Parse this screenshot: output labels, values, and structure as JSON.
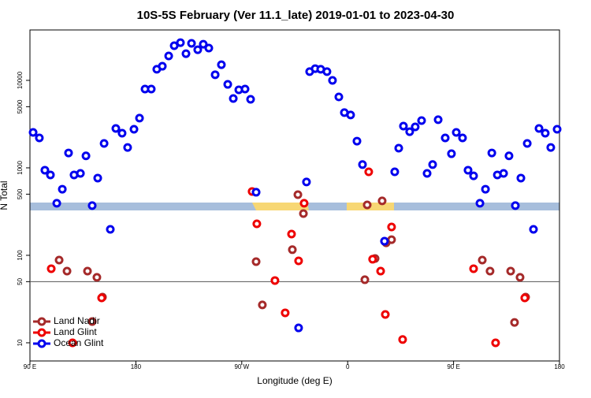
{
  "chart_data": {
    "type": "scatter",
    "title": "10S-5S February (Ver 11.1_late)   2019-01-01 to 2023-04-30",
    "x_label": "Longitude (deg E)",
    "y_label": "N Total",
    "xlim": [
      90,
      540
    ],
    "xticks": [
      {
        "value": 90,
        "label": "90 E"
      },
      {
        "value": 180,
        "label": "180"
      },
      {
        "value": 270,
        "label": "90 W"
      },
      {
        "value": 360,
        "label": "0"
      },
      {
        "value": 450,
        "label": "90 E"
      },
      {
        "value": 540,
        "label": "180"
      }
    ],
    "ylim": [
      6.2,
      37700
    ],
    "y_scale": "log",
    "yticks": [
      10,
      50,
      100,
      500,
      1000,
      5000,
      10000
    ],
    "hline": 50,
    "legend": "bottom-left",
    "series": [
      {
        "name": "Land Nadir",
        "color": "#a52a2a",
        "x": [
          114.8,
          121.5,
          138.9,
          142.9,
          146.9,
          151.6,
          282.2,
          287.5,
          313.0,
          317.7,
          322.4,
          374.6,
          376.6,
          383.3,
          389.3,
          392.7,
          397.3,
          474.4,
          481.0,
          498.5,
          501.8,
          506.5,
          511.2
        ],
        "values": [
          88.3,
          66,
          66,
          17.5,
          56,
          33.3,
          84.7,
          27.1,
          116,
          494,
          300,
          52.6,
          377,
          92,
          419,
          139,
          151,
          88.3,
          66,
          66,
          17.1,
          56,
          33.3
        ]
      },
      {
        "name": "Land Glint",
        "color": "#ee0000",
        "x": [
          108.1,
          126.2,
          150.9,
          278.8,
          282.8,
          298.2,
          306.9,
          312.3,
          318.3,
          323.0,
          377.9,
          381.2,
          388.0,
          392.0,
          397.3,
          406.7,
          467.0,
          485.7,
          510.5
        ],
        "values": [
          70.3,
          10,
          32.6,
          537,
          229,
          51.5,
          22,
          175,
          86.5,
          394,
          900,
          90.2,
          66,
          21.1,
          211,
          10.9,
          70.3,
          10,
          32.6
        ]
      },
      {
        "name": "Ocean Glint",
        "color": "#0000ee",
        "x": [
          92.7,
          98.0,
          102.7,
          107.4,
          112.8,
          117.5,
          122.8,
          127.5,
          132.9,
          137.6,
          142.9,
          147.6,
          153.0,
          158.3,
          163.0,
          168.3,
          173.0,
          178.4,
          183.1,
          187.8,
          193.1,
          197.8,
          202.5,
          207.9,
          212.6,
          217.9,
          222.6,
          227.3,
          232.6,
          237.3,
          242.0,
          247.4,
          252.7,
          258.1,
          262.8,
          267.5,
          272.8,
          277.5,
          282.2,
          318.3,
          325.0,
          327.7,
          332.4,
          337.1,
          342.4,
          347.1,
          352.5,
          357.2,
          362.5,
          367.9,
          372.6,
          391.3,
          400.0,
          403.4,
          407.4,
          412.7,
          417.4,
          422.8,
          427.5,
          432.2,
          436.9,
          442.9,
          448.2,
          452.3,
          457.6,
          462.3,
          467.0,
          472.4,
          477.1,
          482.5,
          487.2,
          492.5,
          497.1,
          502.5,
          507.2,
          512.6,
          517.9,
          522.6,
          527.9,
          532.6,
          538.0
        ],
        "values": [
          2540,
          2200,
          940,
          830,
          394,
          570,
          1480,
          830,
          865,
          1370,
          370,
          764,
          1900,
          198,
          2820,
          2490,
          1710,
          2760,
          3700,
          7960,
          7960,
          13400,
          14500,
          19000,
          24900,
          27000,
          20200,
          26500,
          22400,
          25900,
          23400,
          11600,
          15100,
          9000,
          6200,
          7800,
          7960,
          6080,
          526,
          14.8,
          689,
          12600,
          13600,
          13400,
          12600,
          10000,
          6470,
          4280,
          4020,
          2020,
          1090,
          145,
          900,
          1680,
          3000,
          2590,
          2940,
          3470,
          865,
          1090,
          3550,
          2200,
          1450,
          2540,
          2200,
          940,
          810,
          394,
          570,
          1480,
          830,
          865,
          1370,
          370,
          764,
          1900,
          198,
          2820,
          2490,
          1710,
          2760
        ]
      }
    ]
  }
}
